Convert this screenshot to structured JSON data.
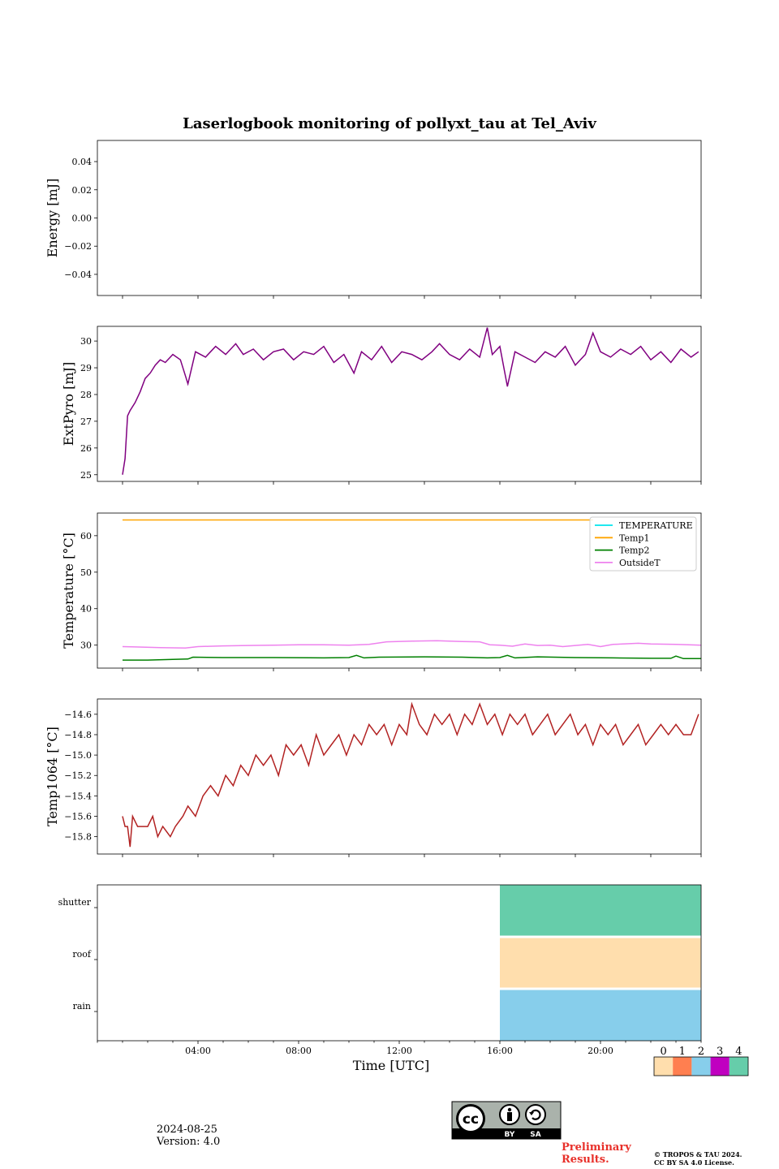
{
  "title": "Laserlogbook monitoring of pollyxt_tau at Tel_Aviv",
  "footer": {
    "date": "2024-08-25",
    "version": "Version: 4.0",
    "preliminary_line1": "Preliminary",
    "preliminary_line2": "Results.",
    "copyright_line1": "© TROPOS & TAU 2024.",
    "copyright_line2": "CC BY SA 4.0 License.",
    "license_badge": {
      "icon": "cc-by-sa-icon",
      "labels": [
        "BY",
        "SA"
      ]
    }
  },
  "chart_data": [
    {
      "type": "line",
      "ylabel": "Energy [mJ]",
      "ylim": [
        -0.055,
        0.055
      ],
      "yticks": [
        0.04,
        0.02,
        0.0,
        -0.02,
        -0.04
      ],
      "ytick_labels": [
        "0.04",
        "0.02",
        "0.00",
        "−0.02",
        "−0.04"
      ],
      "xlim": [
        0,
        24
      ],
      "series": []
    },
    {
      "type": "line",
      "ylabel": "ExtPyro [mJ]",
      "ylim": [
        24.75,
        30.55
      ],
      "yticks": [
        25,
        26,
        27,
        28,
        29,
        30
      ],
      "ytick_labels": [
        "25",
        "26",
        "27",
        "28",
        "29",
        "30"
      ],
      "xlim": [
        0,
        24
      ],
      "series": [
        {
          "color": "#800080",
          "points": [
            [
              1.0,
              25.0
            ],
            [
              1.1,
              25.6
            ],
            [
              1.2,
              27.2
            ],
            [
              1.3,
              27.4
            ],
            [
              1.5,
              27.7
            ],
            [
              1.7,
              28.1
            ],
            [
              1.9,
              28.6
            ],
            [
              2.1,
              28.8
            ],
            [
              2.3,
              29.1
            ],
            [
              2.5,
              29.3
            ],
            [
              2.7,
              29.2
            ],
            [
              3.0,
              29.5
            ],
            [
              3.3,
              29.3
            ],
            [
              3.6,
              28.4
            ],
            [
              3.9,
              29.6
            ],
            [
              4.3,
              29.4
            ],
            [
              4.7,
              29.8
            ],
            [
              5.1,
              29.5
            ],
            [
              5.5,
              29.9
            ],
            [
              5.8,
              29.5
            ],
            [
              6.2,
              29.7
            ],
            [
              6.6,
              29.3
            ],
            [
              7.0,
              29.6
            ],
            [
              7.4,
              29.7
            ],
            [
              7.8,
              29.3
            ],
            [
              8.2,
              29.6
            ],
            [
              8.6,
              29.5
            ],
            [
              9.0,
              29.8
            ],
            [
              9.4,
              29.2
            ],
            [
              9.8,
              29.5
            ],
            [
              10.2,
              28.8
            ],
            [
              10.5,
              29.6
            ],
            [
              10.9,
              29.3
            ],
            [
              11.3,
              29.8
            ],
            [
              11.7,
              29.2
            ],
            [
              12.1,
              29.6
            ],
            [
              12.5,
              29.5
            ],
            [
              12.9,
              29.3
            ],
            [
              13.3,
              29.6
            ],
            [
              13.6,
              29.9
            ],
            [
              14.0,
              29.5
            ],
            [
              14.4,
              29.3
            ],
            [
              14.8,
              29.7
            ],
            [
              15.2,
              29.4
            ],
            [
              15.5,
              30.5
            ],
            [
              15.7,
              29.5
            ],
            [
              16.0,
              29.8
            ],
            [
              16.3,
              28.3
            ],
            [
              16.6,
              29.6
            ],
            [
              17.0,
              29.4
            ],
            [
              17.4,
              29.2
            ],
            [
              17.8,
              29.6
            ],
            [
              18.2,
              29.4
            ],
            [
              18.6,
              29.8
            ],
            [
              19.0,
              29.1
            ],
            [
              19.4,
              29.5
            ],
            [
              19.7,
              30.3
            ],
            [
              20.0,
              29.6
            ],
            [
              20.4,
              29.4
            ],
            [
              20.8,
              29.7
            ],
            [
              21.2,
              29.5
            ],
            [
              21.6,
              29.8
            ],
            [
              22.0,
              29.3
            ],
            [
              22.4,
              29.6
            ],
            [
              22.8,
              29.2
            ],
            [
              23.2,
              29.7
            ],
            [
              23.6,
              29.4
            ],
            [
              23.9,
              29.6
            ]
          ]
        }
      ]
    },
    {
      "type": "line",
      "ylabel": "Temperature [°C]",
      "ylim": [
        23.7,
        66.2
      ],
      "yticks": [
        30,
        40,
        50,
        60
      ],
      "ytick_labels": [
        "30",
        "40",
        "50",
        "60"
      ],
      "xlim": [
        0,
        24
      ],
      "legend": {
        "position": "top-right"
      },
      "series": [
        {
          "name": "TEMPERATURE",
          "color": "#00e5ee",
          "points": []
        },
        {
          "name": "Temp1",
          "color": "#ffa500",
          "points": [
            [
              1.0,
              64.3
            ],
            [
              19.7,
              64.3
            ]
          ]
        },
        {
          "name": "Temp2",
          "color": "#008000",
          "points": [
            [
              1.0,
              25.9
            ],
            [
              2.0,
              25.9
            ],
            [
              3.0,
              26.1
            ],
            [
              3.6,
              26.2
            ],
            [
              3.8,
              26.7
            ],
            [
              5.0,
              26.6
            ],
            [
              7.0,
              26.6
            ],
            [
              9.0,
              26.5
            ],
            [
              10.0,
              26.6
            ],
            [
              10.3,
              27.2
            ],
            [
              10.6,
              26.5
            ],
            [
              11.2,
              26.7
            ],
            [
              13.0,
              26.8
            ],
            [
              14.5,
              26.7
            ],
            [
              15.5,
              26.5
            ],
            [
              16.0,
              26.6
            ],
            [
              16.3,
              27.2
            ],
            [
              16.6,
              26.5
            ],
            [
              17.5,
              26.8
            ],
            [
              19.0,
              26.6
            ],
            [
              20.5,
              26.5
            ],
            [
              22.0,
              26.4
            ],
            [
              22.8,
              26.4
            ],
            [
              23.0,
              27.0
            ],
            [
              23.3,
              26.3
            ],
            [
              24.0,
              26.3
            ]
          ]
        },
        {
          "name": "OutsideT",
          "color": "#ee82ee",
          "points": [
            [
              1.0,
              29.6
            ],
            [
              1.5,
              29.5
            ],
            [
              2.5,
              29.3
            ],
            [
              3.5,
              29.2
            ],
            [
              4.0,
              29.6
            ],
            [
              5.0,
              29.8
            ],
            [
              6.0,
              29.9
            ],
            [
              7.0,
              30.0
            ],
            [
              8.0,
              30.1
            ],
            [
              9.0,
              30.1
            ],
            [
              10.0,
              30.0
            ],
            [
              10.8,
              30.2
            ],
            [
              11.5,
              30.9
            ],
            [
              12.5,
              31.1
            ],
            [
              13.5,
              31.2
            ],
            [
              14.5,
              31.0
            ],
            [
              15.2,
              30.9
            ],
            [
              15.6,
              30.1
            ],
            [
              16.0,
              30.0
            ],
            [
              16.5,
              29.7
            ],
            [
              17.0,
              30.3
            ],
            [
              17.5,
              29.9
            ],
            [
              18.0,
              30.0
            ],
            [
              18.5,
              29.6
            ],
            [
              19.0,
              29.9
            ],
            [
              19.5,
              30.2
            ],
            [
              20.0,
              29.6
            ],
            [
              20.5,
              30.2
            ],
            [
              21.5,
              30.5
            ],
            [
              22.0,
              30.3
            ],
            [
              23.0,
              30.2
            ],
            [
              24.0,
              30.0
            ]
          ]
        }
      ]
    },
    {
      "type": "line",
      "ylabel": "Temp1064 [°C]",
      "ylim": [
        -15.97,
        -14.45
      ],
      "yticks": [
        -14.6,
        -14.8,
        -15.0,
        -15.2,
        -15.4,
        -15.6,
        -15.8
      ],
      "ytick_labels": [
        "−14.6",
        "−14.8",
        "−15.0",
        "−15.2",
        "−15.4",
        "−15.6",
        "−15.8"
      ],
      "xlim": [
        0,
        24
      ],
      "series": [
        {
          "color": "#b22222",
          "points": [
            [
              1.0,
              -15.6
            ],
            [
              1.1,
              -15.7
            ],
            [
              1.2,
              -15.7
            ],
            [
              1.3,
              -15.9
            ],
            [
              1.4,
              -15.6
            ],
            [
              1.6,
              -15.7
            ],
            [
              2.0,
              -15.7
            ],
            [
              2.2,
              -15.6
            ],
            [
              2.4,
              -15.8
            ],
            [
              2.6,
              -15.7
            ],
            [
              2.9,
              -15.8
            ],
            [
              3.1,
              -15.7
            ],
            [
              3.4,
              -15.6
            ],
            [
              3.6,
              -15.5
            ],
            [
              3.9,
              -15.6
            ],
            [
              4.2,
              -15.4
            ],
            [
              4.5,
              -15.3
            ],
            [
              4.8,
              -15.4
            ],
            [
              5.1,
              -15.2
            ],
            [
              5.4,
              -15.3
            ],
            [
              5.7,
              -15.1
            ],
            [
              6.0,
              -15.2
            ],
            [
              6.3,
              -15.0
            ],
            [
              6.6,
              -15.1
            ],
            [
              6.9,
              -15.0
            ],
            [
              7.2,
              -15.2
            ],
            [
              7.5,
              -14.9
            ],
            [
              7.8,
              -15.0
            ],
            [
              8.1,
              -14.9
            ],
            [
              8.4,
              -15.1
            ],
            [
              8.7,
              -14.8
            ],
            [
              9.0,
              -15.0
            ],
            [
              9.3,
              -14.9
            ],
            [
              9.6,
              -14.8
            ],
            [
              9.9,
              -15.0
            ],
            [
              10.2,
              -14.8
            ],
            [
              10.5,
              -14.9
            ],
            [
              10.8,
              -14.7
            ],
            [
              11.1,
              -14.8
            ],
            [
              11.4,
              -14.7
            ],
            [
              11.7,
              -14.9
            ],
            [
              12.0,
              -14.7
            ],
            [
              12.3,
              -14.8
            ],
            [
              12.5,
              -14.5
            ],
            [
              12.8,
              -14.7
            ],
            [
              13.1,
              -14.8
            ],
            [
              13.4,
              -14.6
            ],
            [
              13.7,
              -14.7
            ],
            [
              14.0,
              -14.6
            ],
            [
              14.3,
              -14.8
            ],
            [
              14.6,
              -14.6
            ],
            [
              14.9,
              -14.7
            ],
            [
              15.2,
              -14.5
            ],
            [
              15.5,
              -14.7
            ],
            [
              15.8,
              -14.6
            ],
            [
              16.1,
              -14.8
            ],
            [
              16.4,
              -14.6
            ],
            [
              16.7,
              -14.7
            ],
            [
              17.0,
              -14.6
            ],
            [
              17.3,
              -14.8
            ],
            [
              17.6,
              -14.7
            ],
            [
              17.9,
              -14.6
            ],
            [
              18.2,
              -14.8
            ],
            [
              18.5,
              -14.7
            ],
            [
              18.8,
              -14.6
            ],
            [
              19.1,
              -14.8
            ],
            [
              19.4,
              -14.7
            ],
            [
              19.7,
              -14.9
            ],
            [
              20.0,
              -14.7
            ],
            [
              20.3,
              -14.8
            ],
            [
              20.6,
              -14.7
            ],
            [
              20.9,
              -14.9
            ],
            [
              21.2,
              -14.8
            ],
            [
              21.5,
              -14.7
            ],
            [
              21.8,
              -14.9
            ],
            [
              22.1,
              -14.8
            ],
            [
              22.4,
              -14.7
            ],
            [
              22.7,
              -14.8
            ],
            [
              23.0,
              -14.7
            ],
            [
              23.3,
              -14.8
            ],
            [
              23.6,
              -14.8
            ],
            [
              23.9,
              -14.6
            ]
          ]
        }
      ]
    },
    {
      "type": "heatmap",
      "xlabel": "Time [UTC]",
      "xlim": [
        0,
        24
      ],
      "xticks": [
        4,
        8,
        12,
        16,
        20
      ],
      "xtick_labels": [
        "04:00",
        "08:00",
        "12:00",
        "16:00",
        "20:00"
      ],
      "rows": [
        "shutter",
        "roof",
        "rain"
      ],
      "segments": [
        {
          "row": "shutter",
          "start": 16,
          "end": 24,
          "status": 4
        },
        {
          "row": "roof",
          "start": 16,
          "end": 24,
          "status": 0
        },
        {
          "row": "rain",
          "start": 16,
          "end": 24,
          "status": 2
        }
      ],
      "colorbar": {
        "labels": [
          "0",
          "1",
          "2",
          "3",
          "4"
        ],
        "colors": [
          "#ffdead",
          "#ff7f50",
          "#87ceeb",
          "#c000c0",
          "#66cdaa"
        ]
      }
    }
  ]
}
